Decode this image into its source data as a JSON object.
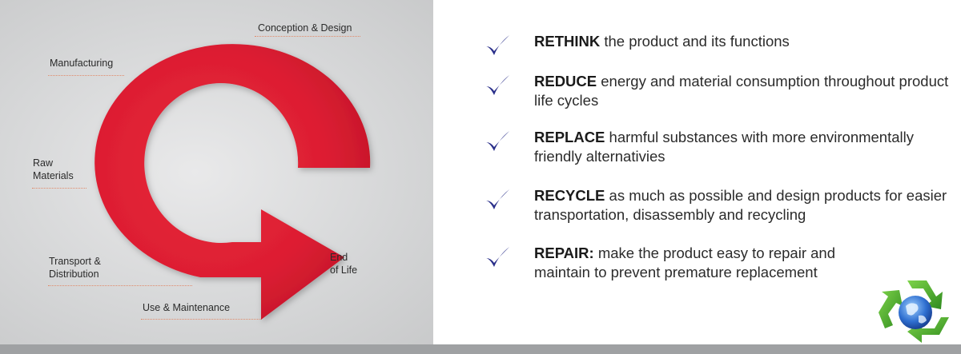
{
  "colors": {
    "arrow_red": "#dd1e32",
    "arrow_dark": "#b9152a",
    "check_blue": "#2a2f8a",
    "panel_gray": "#d7d8d9",
    "bar_gray": "#9fa1a3"
  },
  "lifecycle": {
    "stages": [
      {
        "id": "conception",
        "label": "Conception & Design"
      },
      {
        "id": "manufacturing",
        "label": "Manufacturing"
      },
      {
        "id": "raw",
        "label": "Raw\nMaterials"
      },
      {
        "id": "transport",
        "label": "Transport &\nDistribution"
      },
      {
        "id": "use",
        "label": "Use & Maintenance"
      },
      {
        "id": "end",
        "label": "End\nof Life"
      }
    ]
  },
  "principles": [
    {
      "keyword": "RETHINK",
      "text": " the product and its functions",
      "icon": "checkmark-icon"
    },
    {
      "keyword": "REDUCE",
      "text": " energy and material consumption throughout product life cycles",
      "icon": "checkmark-icon"
    },
    {
      "keyword": "REPLACE",
      "text": " harmful substances with more environmentally friendly alternativies",
      "icon": "checkmark-icon"
    },
    {
      "keyword": "RECYCLE",
      "text": " as much as possible and design products for easier transportation, disassembly and recycling",
      "icon": "checkmark-icon"
    },
    {
      "keyword": "REPAIR:",
      "text": " make the product easy to repair and maintain to prevent premature replacement",
      "icon": "checkmark-icon"
    }
  ],
  "logo": {
    "icon": "recycle-globe-icon"
  }
}
